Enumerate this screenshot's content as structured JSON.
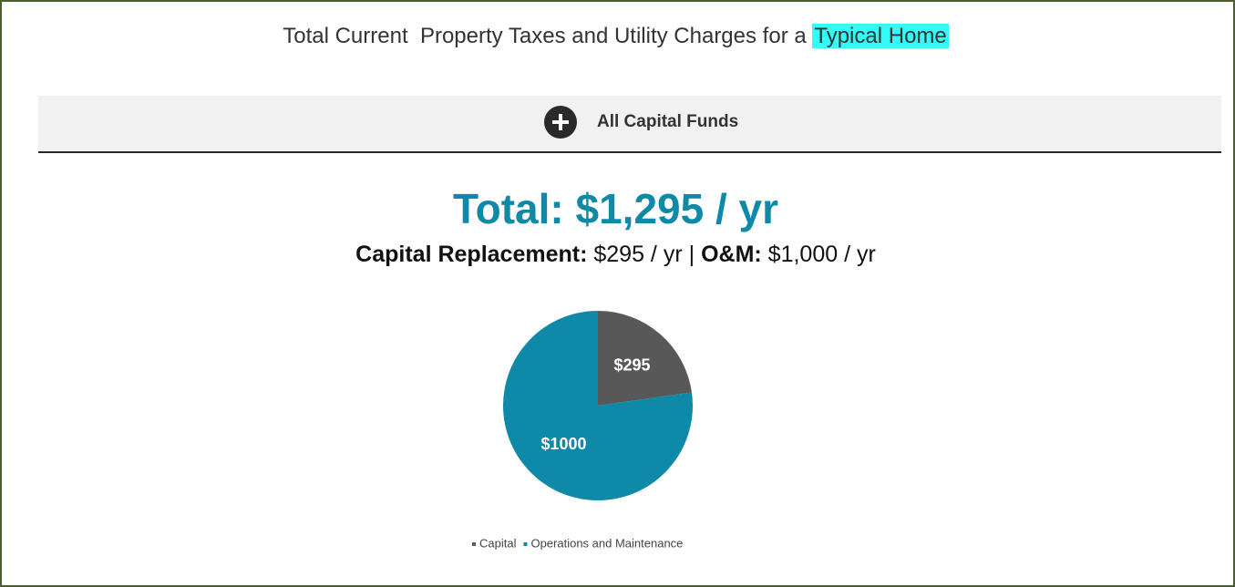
{
  "header": {
    "title": "Total Current  Property Taxes and Utility Charges for a",
    "title_highlight": "Typical Home"
  },
  "accordion": {
    "label": "All Capital Funds"
  },
  "summary": {
    "total": "Total: $1,295 / yr",
    "items": [
      {
        "label": "Capital Replacement:",
        "value": "$295 / yr"
      },
      {
        "label": "O&M:",
        "value": "$1,000 / yr"
      }
    ],
    "separator": "|"
  },
  "chart_data": {
    "type": "pie",
    "categories": [
      "Capital",
      "Operations and Maintenance"
    ],
    "values": [
      295,
      1000
    ],
    "value_labels": [
      "$295",
      "$1000"
    ],
    "colors": [
      "#585858",
      "#0e89a7"
    ],
    "legend": "bottom"
  }
}
